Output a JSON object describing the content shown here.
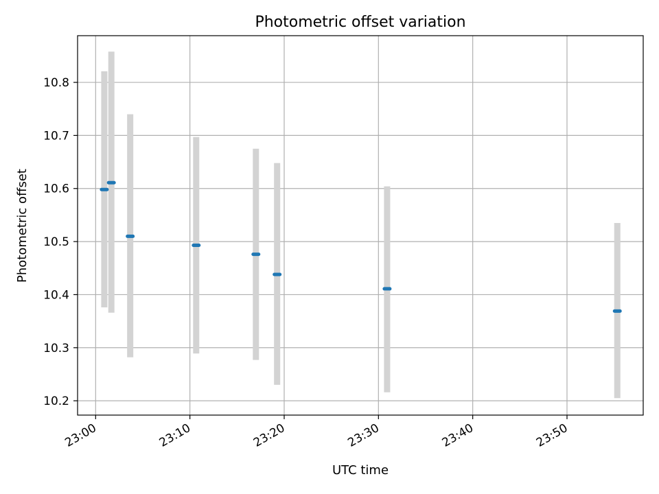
{
  "chart_data": {
    "type": "scatter",
    "title": "Photometric offset variation",
    "xlabel": "UTC time",
    "ylabel": "Photometric offset",
    "xlim": [
      "22:58:05",
      "23:58:05"
    ],
    "ylim": [
      10.173,
      10.888
    ],
    "grid": true,
    "x_ticks": [
      "23:00",
      "23:10",
      "23:20",
      "23:30",
      "23:40",
      "23:50"
    ],
    "y_ticks": [
      "10.2",
      "10.3",
      "10.4",
      "10.5",
      "10.6",
      "10.7",
      "10.8"
    ],
    "series": [
      {
        "marker_color": "#1f77b4",
        "errorbar_color": "#d3d3d3",
        "points": [
          {
            "x": "23:00:55",
            "y": 10.598,
            "y_low": 10.376,
            "y_high": 10.821
          },
          {
            "x": "23:01:40",
            "y": 10.611,
            "y_low": 10.366,
            "y_high": 10.858
          },
          {
            "x": "23:03:40",
            "y": 10.51,
            "y_low": 10.282,
            "y_high": 10.74
          },
          {
            "x": "23:10:40",
            "y": 10.493,
            "y_low": 10.289,
            "y_high": 10.697
          },
          {
            "x": "23:17:00",
            "y": 10.476,
            "y_low": 10.277,
            "y_high": 10.675
          },
          {
            "x": "23:19:15",
            "y": 10.438,
            "y_low": 10.23,
            "y_high": 10.648
          },
          {
            "x": "23:30:55",
            "y": 10.411,
            "y_low": 10.216,
            "y_high": 10.604
          },
          {
            "x": "23:55:20",
            "y": 10.369,
            "y_low": 10.205,
            "y_high": 10.535
          }
        ]
      }
    ]
  }
}
